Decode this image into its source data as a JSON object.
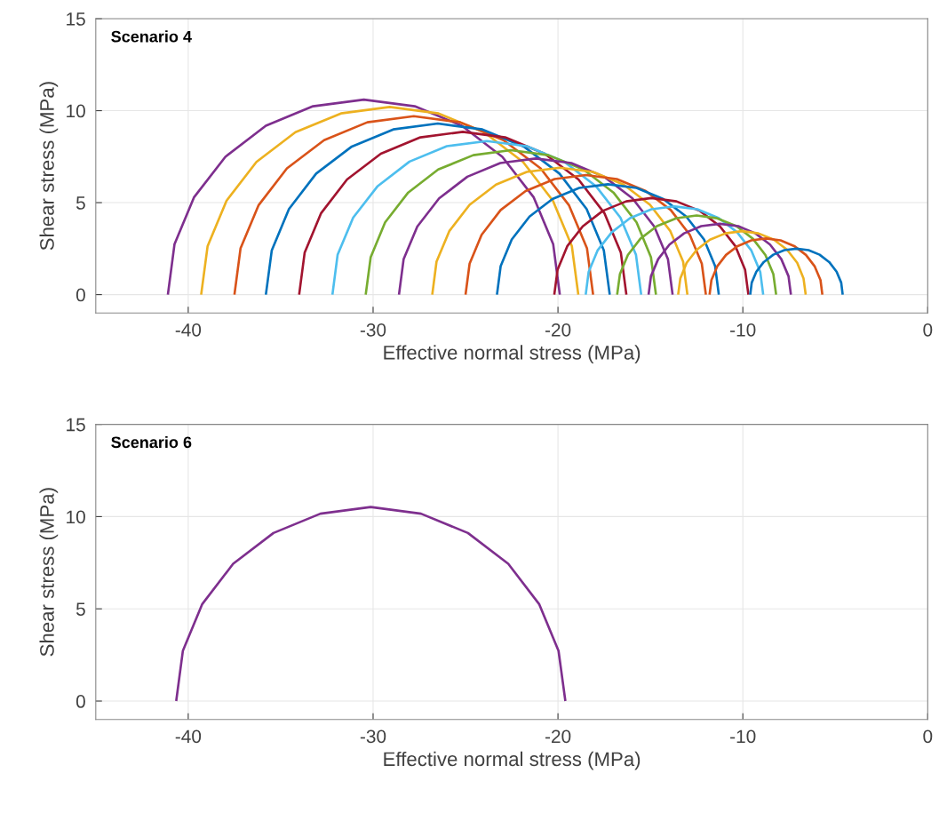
{
  "chart_data": [
    {
      "type": "line",
      "annotations": [
        "Scenario 4"
      ],
      "xlabel": "Effective normal stress (MPa)",
      "ylabel": "Shear stress (MPa)",
      "xlim": [
        -45,
        0
      ],
      "ylim": [
        -1,
        15
      ],
      "xticks": [
        -40,
        -30,
        -20,
        -10,
        0
      ],
      "yticks": [
        0,
        5,
        10,
        15
      ],
      "grid": true,
      "series": [
        {
          "color": "#7e2f8e",
          "x": [
            -41.1,
            -40.74,
            -39.68,
            -37.99,
            -35.8,
            -33.25,
            -30.5,
            -27.75,
            -25.2,
            -23.01,
            -21.32,
            -20.26,
            -19.9
          ],
          "values": [
            0,
            2.75,
            5.3,
            7.49,
            9.18,
            10.24,
            10.6,
            10.24,
            9.18,
            7.49,
            5.3,
            2.75,
            0
          ]
        },
        {
          "color": "#edb120",
          "x": [
            -39.3,
            -38.95,
            -37.93,
            -36.31,
            -34.2,
            -31.74,
            -29.1,
            -26.46,
            -24.0,
            -21.89,
            -20.27,
            -19.25,
            -18.9
          ],
          "values": [
            0,
            2.64,
            5.1,
            7.21,
            8.83,
            9.85,
            10.2,
            9.85,
            8.83,
            7.21,
            5.1,
            2.64,
            0
          ]
        },
        {
          "color": "#d95319",
          "x": [
            -37.5,
            -37.17,
            -36.2,
            -34.66,
            -32.65,
            -30.31,
            -27.8,
            -25.29,
            -22.95,
            -20.94,
            -19.4,
            -18.43,
            -18.1
          ],
          "values": [
            0,
            2.51,
            4.85,
            6.86,
            8.4,
            9.37,
            9.7,
            9.37,
            8.4,
            6.86,
            4.85,
            2.51,
            0
          ]
        },
        {
          "color": "#0072bd",
          "x": [
            -35.8,
            -35.48,
            -34.55,
            -33.08,
            -31.15,
            -28.91,
            -26.5,
            -24.09,
            -21.85,
            -19.92,
            -18.45,
            -17.52,
            -17.2
          ],
          "values": [
            0,
            2.41,
            4.65,
            6.58,
            8.05,
            8.98,
            9.3,
            8.98,
            8.05,
            6.58,
            4.65,
            2.41,
            0
          ]
        },
        {
          "color": "#a2142f",
          "x": [
            -34.0,
            -33.7,
            -32.81,
            -31.41,
            -29.58,
            -27.44,
            -25.15,
            -22.86,
            -20.72,
            -18.89,
            -17.49,
            -16.6,
            -16.3
          ],
          "values": [
            0,
            2.29,
            4.43,
            6.26,
            7.66,
            8.55,
            8.85,
            8.55,
            7.66,
            6.26,
            4.43,
            2.29,
            0
          ]
        },
        {
          "color": "#4dbeee",
          "x": [
            -32.2,
            -31.92,
            -31.08,
            -29.75,
            -28.03,
            -26.01,
            -23.85,
            -21.69,
            -19.67,
            -17.95,
            -16.62,
            -15.78,
            -15.5
          ],
          "values": [
            0,
            2.16,
            4.18,
            5.9,
            7.23,
            8.07,
            8.35,
            8.07,
            7.23,
            5.9,
            4.18,
            2.16,
            0
          ]
        },
        {
          "color": "#77ac30",
          "x": [
            -30.4,
            -30.13,
            -29.35,
            -28.1,
            -26.48,
            -24.58,
            -22.55,
            -20.52,
            -18.62,
            -17.0,
            -15.75,
            -14.97,
            -14.7
          ],
          "values": [
            0,
            2.03,
            3.93,
            5.55,
            6.8,
            7.58,
            7.85,
            7.58,
            6.8,
            5.55,
            3.93,
            2.03,
            0
          ]
        },
        {
          "color": "#7e2f8e",
          "x": [
            -28.6,
            -28.35,
            -27.61,
            -26.43,
            -24.9,
            -23.12,
            -21.2,
            -19.28,
            -17.5,
            -15.97,
            -14.79,
            -14.05,
            -13.8
          ],
          "values": [
            0,
            1.92,
            3.7,
            5.23,
            6.41,
            7.15,
            7.4,
            7.15,
            6.41,
            5.23,
            3.7,
            1.92,
            0
          ]
        },
        {
          "color": "#edb120",
          "x": [
            -26.8,
            -26.57,
            -25.88,
            -24.78,
            -23.35,
            -21.69,
            -19.9,
            -18.11,
            -16.45,
            -15.02,
            -13.92,
            -13.23,
            -13.0
          ],
          "values": [
            0,
            1.79,
            3.45,
            4.88,
            5.98,
            6.67,
            6.9,
            6.67,
            5.98,
            4.88,
            3.45,
            1.79,
            0
          ]
        },
        {
          "color": "#d95319",
          "x": [
            -25.0,
            -24.78,
            -24.13,
            -23.1,
            -21.75,
            -20.18,
            -18.5,
            -16.82,
            -15.25,
            -13.9,
            -12.87,
            -12.22,
            -12.0
          ],
          "values": [
            0,
            1.68,
            3.25,
            4.6,
            5.63,
            6.28,
            6.5,
            6.28,
            5.63,
            4.6,
            3.25,
            1.68,
            0
          ]
        },
        {
          "color": "#0072bd",
          "x": [
            -23.3,
            -23.1,
            -22.5,
            -21.54,
            -20.3,
            -18.85,
            -17.3,
            -15.75,
            -14.3,
            -13.06,
            -12.1,
            -11.5,
            -11.3
          ],
          "values": [
            0,
            1.55,
            3.0,
            4.24,
            5.2,
            5.8,
            6.0,
            5.8,
            5.2,
            4.24,
            3.0,
            1.55,
            0
          ]
        },
        {
          "color": "#a2142f",
          "x": [
            -20.2,
            -20.02,
            -19.5,
            -18.66,
            -17.58,
            -16.31,
            -14.95,
            -13.59,
            -12.32,
            -11.24,
            -10.4,
            -9.88,
            -9.7
          ],
          "values": [
            0,
            1.36,
            2.63,
            3.71,
            4.55,
            5.07,
            5.25,
            5.07,
            4.55,
            3.71,
            2.63,
            1.36,
            0
          ]
        },
        {
          "color": "#4dbeee",
          "x": [
            -18.5,
            -18.34,
            -17.86,
            -17.09,
            -16.1,
            -14.94,
            -13.7,
            -12.46,
            -11.3,
            -10.31,
            -9.54,
            -9.06,
            -8.9
          ],
          "values": [
            0,
            1.24,
            2.4,
            3.39,
            4.16,
            4.64,
            4.8,
            4.64,
            4.16,
            3.39,
            2.4,
            1.24,
            0
          ]
        },
        {
          "color": "#77ac30",
          "x": [
            -16.8,
            -16.65,
            -16.22,
            -15.54,
            -14.65,
            -13.61,
            -12.5,
            -11.39,
            -10.35,
            -9.46,
            -8.78,
            -8.35,
            -8.2
          ],
          "values": [
            0,
            1.11,
            2.15,
            3.04,
            3.72,
            4.15,
            4.3,
            4.15,
            3.72,
            3.04,
            2.15,
            1.11,
            0
          ]
        },
        {
          "color": "#7e2f8e",
          "x": [
            -15.1,
            -14.97,
            -14.58,
            -13.97,
            -13.18,
            -12.25,
            -11.25,
            -10.25,
            -9.32,
            -8.53,
            -7.92,
            -7.53,
            -7.4
          ],
          "values": [
            0,
            1.0,
            1.93,
            2.72,
            3.33,
            3.72,
            3.85,
            3.72,
            3.33,
            2.72,
            1.93,
            1.0,
            0
          ]
        },
        {
          "color": "#edb120",
          "x": [
            -13.5,
            -13.38,
            -13.04,
            -12.49,
            -11.78,
            -10.94,
            -10.05,
            -9.16,
            -8.32,
            -7.61,
            -7.06,
            -6.72,
            -6.6
          ],
          "values": [
            0,
            0.89,
            1.73,
            2.44,
            2.99,
            3.33,
            3.45,
            3.33,
            2.99,
            2.44,
            1.73,
            0.89,
            0
          ]
        },
        {
          "color": "#d95319",
          "x": [
            -11.8,
            -11.7,
            -11.39,
            -10.91,
            -10.28,
            -9.54,
            -8.75,
            -7.96,
            -7.22,
            -6.59,
            -6.11,
            -5.8,
            -5.7
          ],
          "values": [
            0,
            0.79,
            1.53,
            2.16,
            2.64,
            2.95,
            3.05,
            2.95,
            2.64,
            2.16,
            1.53,
            0.79,
            0
          ]
        },
        {
          "color": "#0072bd",
          "x": [
            -9.6,
            -9.52,
            -9.27,
            -8.87,
            -8.35,
            -7.75,
            -7.1,
            -6.45,
            -5.85,
            -5.33,
            -4.93,
            -4.68,
            -4.6
          ],
          "values": [
            0,
            0.65,
            1.25,
            1.77,
            2.17,
            2.42,
            2.5,
            2.42,
            2.17,
            1.77,
            1.25,
            0.65,
            0
          ]
        }
      ]
    },
    {
      "type": "line",
      "annotations": [
        "Scenario 6"
      ],
      "xlabel": "Effective normal stress (MPa)",
      "ylabel": "Shear stress (MPa)",
      "xlim": [
        -45,
        0
      ],
      "ylim": [
        -1,
        15
      ],
      "xticks": [
        -40,
        -30,
        -20,
        -10,
        0
      ],
      "yticks": [
        0,
        5,
        10,
        15
      ],
      "grid": true,
      "series": [
        {
          "color": "#7e2f8e",
          "x": [
            -40.65,
            -40.29,
            -39.24,
            -37.57,
            -35.39,
            -32.85,
            -30.13,
            -27.41,
            -24.87,
            -22.69,
            -21.02,
            -19.97,
            -19.6
          ],
          "values": [
            0,
            2.72,
            5.26,
            7.44,
            9.11,
            10.16,
            10.52,
            10.16,
            9.11,
            7.44,
            5.26,
            2.72,
            0
          ]
        }
      ]
    }
  ]
}
